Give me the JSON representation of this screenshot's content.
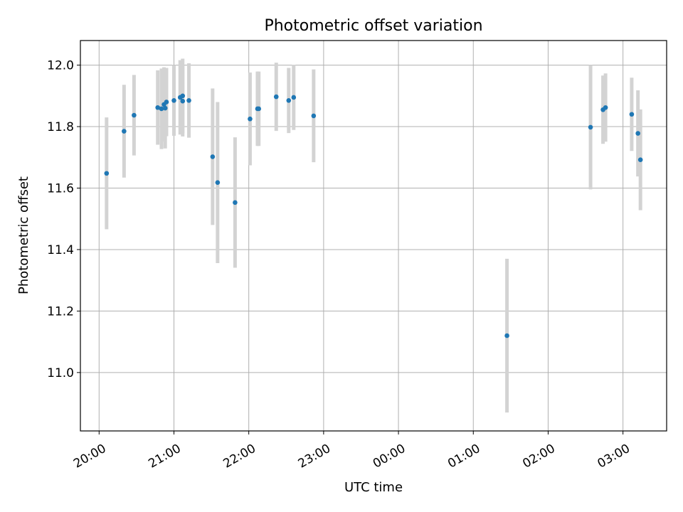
{
  "chart_data": {
    "type": "scatter",
    "title": "Photometric offset variation",
    "xlabel": "UTC time",
    "ylabel": "Photometric offset",
    "xlim": [
      "19:45",
      "03:35"
    ],
    "ylim": [
      10.81,
      12.08
    ],
    "x_ticks": [
      "20:00",
      "21:00",
      "22:00",
      "23:00",
      "00:00",
      "01:00",
      "02:00",
      "03:00"
    ],
    "y_ticks": [
      "11.0",
      "11.2",
      "11.4",
      "11.6",
      "11.8",
      "12.0"
    ],
    "grid": true,
    "series": [
      {
        "marker_color": "#1f77b4",
        "errorbar_color": "#d3d3d3",
        "points": [
          {
            "x": "20:06",
            "y": 11.648,
            "err": 0.182
          },
          {
            "x": "20:20",
            "y": 11.785,
            "err": 0.151
          },
          {
            "x": "20:28",
            "y": 11.837,
            "err": 0.131
          },
          {
            "x": "20:47",
            "y": 11.862,
            "err": 0.121
          },
          {
            "x": "20:50",
            "y": 11.858,
            "err": 0.131
          },
          {
            "x": "20:52",
            "y": 11.872,
            "err": 0.121
          },
          {
            "x": "20:53",
            "y": 11.86,
            "err": 0.131
          },
          {
            "x": "20:54",
            "y": 11.88,
            "err": 0.111
          },
          {
            "x": "21:00",
            "y": 11.885,
            "err": 0.115
          },
          {
            "x": "21:05",
            "y": 11.895,
            "err": 0.121
          },
          {
            "x": "21:07",
            "y": 11.9,
            "err": 0.121
          },
          {
            "x": "21:07",
            "y": 11.883,
            "err": 0.115
          },
          {
            "x": "21:12",
            "y": 11.885,
            "err": 0.121
          },
          {
            "x": "21:31",
            "y": 11.702,
            "err": 0.222
          },
          {
            "x": "21:35",
            "y": 11.618,
            "err": 0.262
          },
          {
            "x": "21:49",
            "y": 11.553,
            "err": 0.212
          },
          {
            "x": "22:01",
            "y": 11.825,
            "err": 0.151
          },
          {
            "x": "22:07",
            "y": 11.858,
            "err": 0.121
          },
          {
            "x": "22:08",
            "y": 11.858,
            "err": 0.121
          },
          {
            "x": "22:22",
            "y": 11.897,
            "err": 0.111
          },
          {
            "x": "22:32",
            "y": 11.885,
            "err": 0.106
          },
          {
            "x": "22:36",
            "y": 11.895,
            "err": 0.106
          },
          {
            "x": "22:52",
            "y": 11.835,
            "err": 0.151
          },
          {
            "x": "01:27",
            "y": 11.12,
            "err": 0.25
          },
          {
            "x": "02:34",
            "y": 11.798,
            "err": 0.202
          },
          {
            "x": "02:44",
            "y": 11.855,
            "err": 0.111
          },
          {
            "x": "02:46",
            "y": 11.862,
            "err": 0.111
          },
          {
            "x": "03:07",
            "y": 11.84,
            "err": 0.119
          },
          {
            "x": "03:12",
            "y": 11.778,
            "err": 0.14
          },
          {
            "x": "03:14",
            "y": 11.692,
            "err": 0.164
          }
        ]
      }
    ]
  }
}
